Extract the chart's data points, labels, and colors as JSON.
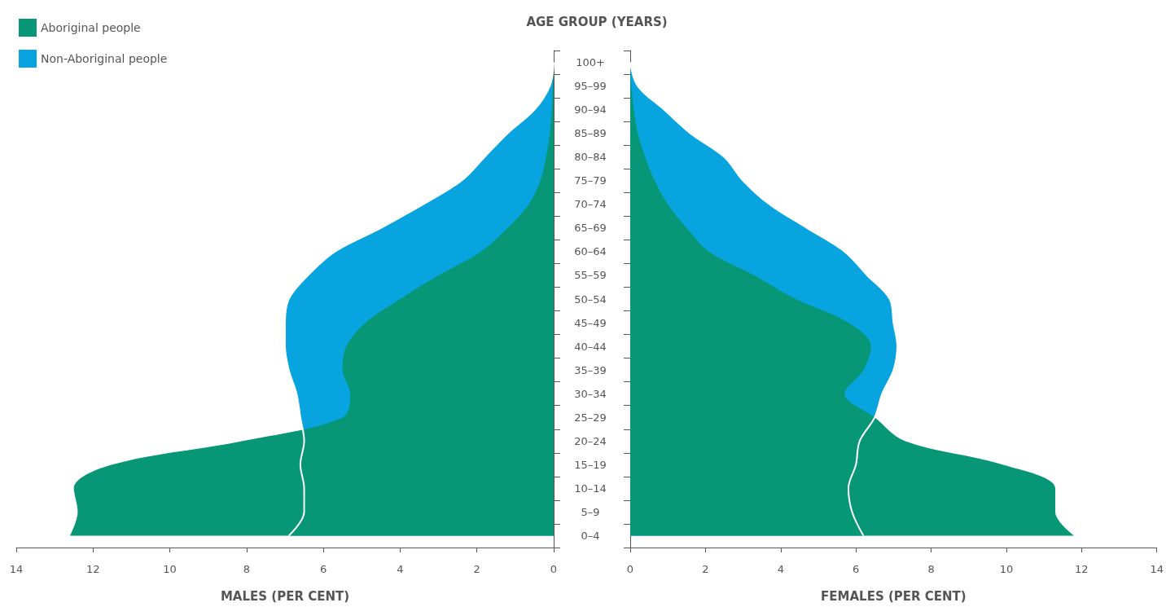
{
  "chart_data": [
    {
      "type": "area",
      "orientation": "horizontal",
      "ylabel": "AGE GROUP (YEARS)",
      "xlabel": "MALES (PER CENT)",
      "categories": [
        "100+",
        "95–99",
        "90–94",
        "85–89",
        "80–84",
        "75–79",
        "70–74",
        "65–69",
        "60–64",
        "55–59",
        "50–54",
        "45–49",
        "40–44",
        "35–39",
        "30–34",
        "25–29",
        "20–24",
        "15–19",
        "10–14",
        "5–9",
        "0–4"
      ],
      "xlim": [
        14,
        0
      ],
      "xticks": [
        14,
        12,
        10,
        8,
        6,
        4,
        2,
        0
      ],
      "legend": "top left",
      "tick_labels": "xy",
      "series": [
        {
          "name": "Aboriginal people",
          "color": "#079776",
          "values": [
            0,
            0.02,
            0.05,
            0.1,
            0.2,
            0.35,
            0.65,
            1.2,
            1.9,
            3.0,
            4.0,
            4.9,
            5.4,
            5.5,
            5.3,
            5.5,
            8.1,
            11.5,
            12.5,
            12.4,
            12.6
          ]
        },
        {
          "name": "Non-Aboriginal people",
          "color": "#08a4e0",
          "values": [
            0,
            0.1,
            0.5,
            1.2,
            1.8,
            2.4,
            3.4,
            4.5,
            5.7,
            6.4,
            6.9,
            7.0,
            7.0,
            6.9,
            6.7,
            6.6,
            6.5,
            6.6,
            6.5,
            6.5,
            6.9
          ]
        }
      ]
    },
    {
      "type": "area",
      "orientation": "horizontal",
      "xlabel": "FEMALES (PER CENT)",
      "categories": [
        "100+",
        "95–99",
        "90–94",
        "85–89",
        "80–84",
        "75–79",
        "70–74",
        "65–69",
        "60–64",
        "55–59",
        "50–54",
        "45–49",
        "40–44",
        "35–39",
        "30–34",
        "25–29",
        "20–24",
        "15–19",
        "10–14",
        "5–9",
        "0–4"
      ],
      "xlim": [
        0,
        14
      ],
      "xticks": [
        0,
        2,
        4,
        6,
        8,
        10,
        12,
        14
      ],
      "legend": false,
      "tick_labels": "x",
      "series": [
        {
          "color": "#079776",
          "values": [
            0,
            0.03,
            0.1,
            0.2,
            0.4,
            0.65,
            1.0,
            1.5,
            2.1,
            3.3,
            4.4,
            5.8,
            6.4,
            6.2,
            5.7,
            6.5,
            7.3,
            9.9,
            11.3,
            11.3,
            11.8
          ]
        },
        {
          "color": "#08a4e0",
          "values": [
            0,
            0.2,
            0.9,
            1.6,
            2.5,
            3.0,
            3.7,
            4.7,
            5.7,
            6.3,
            6.9,
            7.0,
            7.1,
            7.0,
            6.7,
            6.5,
            6.1,
            6.0,
            5.8,
            5.9,
            6.2
          ]
        }
      ]
    }
  ]
}
